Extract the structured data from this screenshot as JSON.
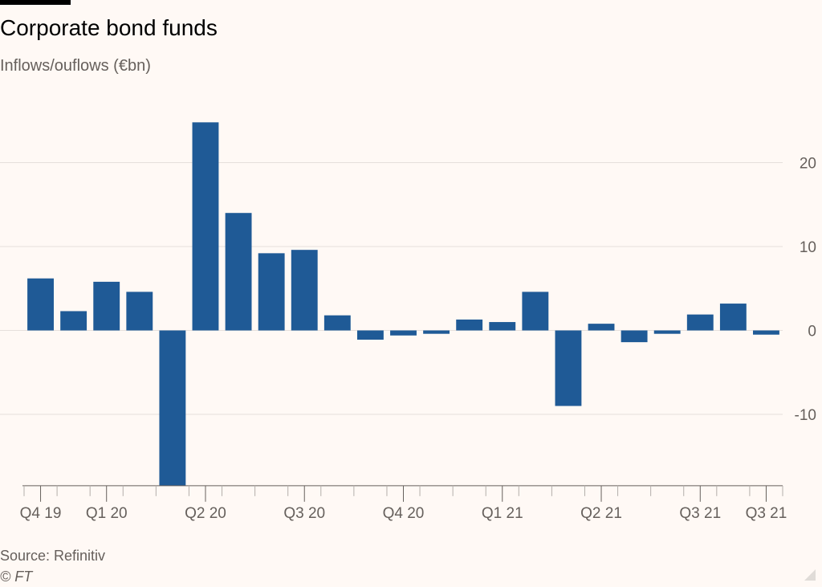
{
  "header": {
    "title": "Corporate bond funds",
    "subtitle": "Inflows/ouflows (€bn)"
  },
  "footer": {
    "source": "Source: Refinitiv",
    "copyright": "© FT"
  },
  "colors": {
    "bar": "#1f5a96",
    "grid": "#e6e0dc",
    "axis": "#66605c"
  },
  "chart_data": {
    "type": "bar",
    "title": "Corporate bond funds",
    "ylabel": "Inflows/ouflows (€bn)",
    "xlabel": "",
    "ylim": [
      -18.5,
      27
    ],
    "yticks": [
      20,
      10,
      0,
      -10
    ],
    "ytick_labels": [
      "20",
      "10",
      "0",
      "-10"
    ],
    "y_axis_side": "right",
    "grid": true,
    "values": [
      6.2,
      2.3,
      5.8,
      4.6,
      -18.5,
      24.8,
      14.0,
      9.2,
      9.6,
      1.8,
      -1.1,
      -0.6,
      -0.4,
      1.3,
      1.0,
      4.6,
      -9.0,
      0.8,
      -1.4,
      -0.4,
      1.9,
      3.2,
      -0.5
    ],
    "tick_positions": [
      0.5,
      2.5,
      5.5,
      8.5,
      11.5,
      14.5,
      17.5,
      20.5,
      22.5
    ],
    "tick_labels": [
      "Q4 19",
      "Q1 20",
      "Q2 20",
      "Q3 20",
      "Q4 20",
      "Q1 21",
      "Q2 21",
      "Q3 21",
      "Q3 21"
    ]
  }
}
